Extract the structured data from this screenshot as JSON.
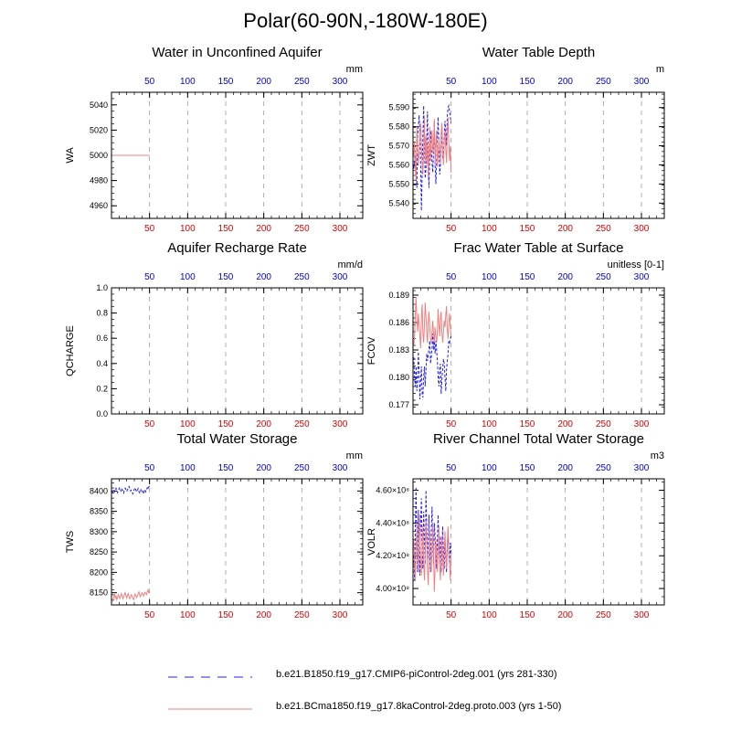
{
  "figure": {
    "title": "Polar(60-90N,-180W-180E)",
    "colors": {
      "case1": "#2020ee",
      "case2": "#f08080",
      "grid": "#9a9a9a",
      "axis": "#000000"
    }
  },
  "legend": [
    {
      "label": "b.e21.B1850.f19_g17.CMIP6-piControl-2deg.001 (yrs 281-330)",
      "color": "#2020ee",
      "style": "dashed"
    },
    {
      "label": "b.e21.BCma1850.f19_g17.8kaControl-2deg.proto.003 (yrs 1-50)",
      "color": "#f08080",
      "style": "solid"
    }
  ],
  "chart_data": [
    {
      "type": "line",
      "title": "Water in Unconfined Aquifer",
      "ylabel": "WA",
      "units": "mm",
      "xlim": [
        0,
        330
      ],
      "ylim": [
        4950,
        5050
      ],
      "xticks": [
        50,
        100,
        150,
        200,
        250,
        300
      ],
      "yticks": [
        4960,
        4980,
        5000,
        5020,
        5040
      ],
      "ytick_labels": [
        "4960",
        "4980",
        "5000",
        "5020",
        "5040"
      ],
      "series": [
        {
          "name": "b.e21.B1850.f19_g17.CMIP6-piControl-2deg.001 (yrs 281-330)",
          "style": "dashed",
          "x_start": 1,
          "values": [
            5000,
            5000,
            5000,
            5000,
            5000,
            5000,
            5000,
            5000,
            5000,
            5000,
            5000,
            5000,
            5000,
            5000,
            5000,
            5000,
            5000,
            5000,
            5000,
            5000,
            5000,
            5000,
            5000,
            5000,
            5000,
            5000,
            5000,
            5000,
            5000,
            5000,
            5000,
            5000,
            5000,
            5000,
            5000,
            5000,
            5000,
            5000,
            5000,
            5000,
            5000,
            5000,
            5000,
            5000,
            5000,
            5000,
            5000,
            5000,
            5000,
            5000
          ]
        },
        {
          "name": "b.e21.BCma1850.f19_g17.8kaControl-2deg.proto.003 (yrs 1-50)",
          "style": "solid",
          "x_start": 1,
          "values": [
            5000,
            5000,
            5000,
            5000,
            5000,
            5000,
            5000,
            5000,
            5000,
            5000,
            5000,
            5000,
            5000,
            5000,
            5000,
            5000,
            5000,
            5000,
            5000,
            5000,
            5000,
            5000,
            5000,
            5000,
            5000,
            5000,
            5000,
            5000,
            5000,
            5000,
            5000,
            5000,
            5000,
            5000,
            5000,
            5000,
            5000,
            5000,
            5000,
            5000,
            5000,
            5000,
            5000,
            5000,
            5000,
            5000,
            5000,
            5000,
            5000,
            5000
          ]
        }
      ]
    },
    {
      "type": "line",
      "title": "Water Table Depth",
      "ylabel": "ZWT",
      "units": "m",
      "xlim": [
        0,
        330
      ],
      "ylim": [
        5.532,
        5.598
      ],
      "xticks": [
        50,
        100,
        150,
        200,
        250,
        300
      ],
      "yticks": [
        5.54,
        5.55,
        5.56,
        5.57,
        5.58,
        5.59
      ],
      "ytick_labels": [
        "5.540",
        "5.550",
        "5.560",
        "5.570",
        "5.580",
        "5.590"
      ],
      "series": [
        {
          "name": "b.e21.B1850.f19_g17.CMIP6-piControl-2deg.001 (yrs 281-330)",
          "style": "dashed",
          "x_start": 1,
          "values": [
            5.558,
            5.562,
            5.565,
            5.553,
            5.548,
            5.575,
            5.58,
            5.586,
            5.578,
            5.562,
            5.536,
            5.555,
            5.575,
            5.591,
            5.57,
            5.553,
            5.558,
            5.572,
            5.588,
            5.56,
            5.548,
            5.566,
            5.578,
            5.571,
            5.561,
            5.556,
            5.569,
            5.583,
            5.56,
            5.55,
            5.562,
            5.574,
            5.585,
            5.57,
            5.555,
            5.56,
            5.572,
            5.58,
            5.563,
            5.566,
            5.575,
            5.583,
            5.577,
            5.57,
            5.586,
            5.59,
            5.591,
            5.588,
            5.585,
            5.582
          ]
        },
        {
          "name": "b.e21.BCma1850.f19_g17.8kaControl-2deg.proto.003 (yrs 1-50)",
          "style": "solid",
          "x_start": 1,
          "values": [
            5.565,
            5.572,
            5.558,
            5.552,
            5.58,
            5.57,
            5.56,
            5.566,
            5.575,
            5.582,
            5.571,
            5.56,
            5.555,
            5.568,
            5.585,
            5.562,
            5.575,
            5.56,
            5.572,
            5.553,
            5.565,
            5.58,
            5.562,
            5.57,
            5.578,
            5.566,
            5.571,
            5.584,
            5.56,
            5.571,
            5.578,
            5.559,
            5.566,
            5.573,
            5.568,
            5.561,
            5.577,
            5.582,
            5.566,
            5.56,
            5.572,
            5.578,
            5.568,
            5.561,
            5.575,
            5.585,
            5.572,
            5.562,
            5.57,
            5.556
          ]
        }
      ]
    },
    {
      "type": "line",
      "title": "Aquifer Recharge Rate",
      "ylabel": "QCHARGE",
      "units": "mm/d",
      "xlim": [
        0,
        330
      ],
      "ylim": [
        0,
        1
      ],
      "xticks": [
        50,
        100,
        150,
        200,
        250,
        300
      ],
      "yticks": [
        0,
        0.2,
        0.4,
        0.6,
        0.8,
        1.0
      ],
      "ytick_labels": [
        "0.0",
        "0.2",
        "0.4",
        "0.6",
        "0.8",
        "1.0"
      ],
      "series": [
        {
          "name": "b.e21.B1850.f19_g17.CMIP6-piControl-2deg.001 (yrs 281-330)",
          "style": "dashed",
          "x_start": 1,
          "values": [
            0,
            0,
            0,
            0,
            0,
            0,
            0,
            0,
            0,
            0,
            0,
            0,
            0,
            0,
            0,
            0,
            0,
            0,
            0,
            0,
            0,
            0,
            0,
            0,
            0,
            0,
            0,
            0,
            0,
            0,
            0,
            0,
            0,
            0,
            0,
            0,
            0,
            0,
            0,
            0,
            0,
            0,
            0,
            0,
            0,
            0,
            0,
            0,
            0,
            0
          ]
        },
        {
          "name": "b.e21.BCma1850.f19_g17.8kaControl-2deg.proto.003 (yrs 1-50)",
          "style": "solid",
          "x_start": 1,
          "values": [
            0,
            0,
            0,
            0,
            0,
            0,
            0,
            0,
            0,
            0,
            0,
            0,
            0,
            0,
            0,
            0,
            0,
            0,
            0,
            0,
            0,
            0,
            0,
            0,
            0,
            0,
            0,
            0,
            0,
            0,
            0,
            0,
            0,
            0,
            0,
            0,
            0,
            0,
            0,
            0,
            0,
            0,
            0,
            0,
            0,
            0,
            0,
            0,
            0,
            0
          ]
        }
      ]
    },
    {
      "type": "line",
      "title": "Frac Water Table at Surface",
      "ylabel": "FCOV",
      "units": "unitless [0-1]",
      "xlim": [
        0,
        330
      ],
      "ylim": [
        0.176,
        0.1898
      ],
      "xticks": [
        50,
        100,
        150,
        200,
        250,
        300
      ],
      "yticks": [
        0.177,
        0.18,
        0.183,
        0.186,
        0.189
      ],
      "ytick_labels": [
        "0.177",
        "0.180",
        "0.183",
        "0.186",
        "0.189"
      ],
      "series": [
        {
          "name": "b.e21.B1850.f19_g17.CMIP6-piControl-2deg.001 (yrs 281-330)",
          "style": "dashed",
          "x_start": 1,
          "values": [
            0.1822,
            0.18,
            0.179,
            0.1812,
            0.1785,
            0.18,
            0.1828,
            0.1805,
            0.1776,
            0.1795,
            0.1812,
            0.1782,
            0.1778,
            0.18,
            0.1812,
            0.179,
            0.1808,
            0.1826,
            0.1818,
            0.1825,
            0.1832,
            0.184,
            0.1815,
            0.1822,
            0.1832,
            0.1848,
            0.183,
            0.1842,
            0.1826,
            0.184,
            0.183,
            0.1818,
            0.18,
            0.179,
            0.1808,
            0.1815,
            0.1782,
            0.1798,
            0.181,
            0.182,
            0.1815,
            0.18,
            0.1785,
            0.1808,
            0.1818,
            0.1826,
            0.184,
            0.1838,
            0.1842,
            0.1845
          ]
        },
        {
          "name": "b.e21.BCma1850.f19_g17.8kaControl-2deg.proto.003 (yrs 1-50)",
          "style": "solid",
          "x_start": 1,
          "values": [
            0.1835,
            0.1845,
            0.187,
            0.1888,
            0.1862,
            0.185,
            0.187,
            0.1858,
            0.1845,
            0.1832,
            0.1865,
            0.188,
            0.1848,
            0.1838,
            0.1858,
            0.1882,
            0.1866,
            0.185,
            0.1838,
            0.186,
            0.1872,
            0.1855,
            0.1842,
            0.1838,
            0.185,
            0.1862,
            0.1848,
            0.1838,
            0.1855,
            0.1845,
            0.1838,
            0.185,
            0.1875,
            0.1858,
            0.1845,
            0.1865,
            0.1872,
            0.1848,
            0.1838,
            0.185,
            0.1862,
            0.1855,
            0.1868,
            0.1878,
            0.1852,
            0.1842,
            0.186,
            0.187,
            0.1855,
            0.1845
          ]
        }
      ]
    },
    {
      "type": "line",
      "title": "Total Water Storage",
      "ylabel": "TWS",
      "units": "mm",
      "xlim": [
        0,
        330
      ],
      "ylim": [
        8120,
        8430
      ],
      "xticks": [
        50,
        100,
        150,
        200,
        250,
        300
      ],
      "yticks": [
        8150,
        8200,
        8250,
        8300,
        8350,
        8400
      ],
      "ytick_labels": [
        "8150",
        "8200",
        "8250",
        "8300",
        "8350",
        "8400"
      ],
      "series": [
        {
          "name": "b.e21.B1850.f19_g17.CMIP6-piControl-2deg.001 (yrs 281-330)",
          "style": "dashed",
          "x_start": 1,
          "values": [
            8395,
            8400,
            8404,
            8398,
            8402,
            8407,
            8403,
            8396,
            8401,
            8406,
            8409,
            8402,
            8398,
            8404,
            8400,
            8395,
            8402,
            8407,
            8404,
            8399,
            8403,
            8408,
            8411,
            8405,
            8400,
            8402,
            8397,
            8393,
            8399,
            8404,
            8408,
            8403,
            8398,
            8402,
            8406,
            8399,
            8394,
            8399,
            8405,
            8401,
            8397,
            8393,
            8400,
            8404,
            8398,
            8402,
            8408,
            8404,
            8410,
            8412
          ]
        },
        {
          "name": "b.e21.BCma1850.f19_g17.8kaControl-2deg.proto.003 (yrs 1-50)",
          "style": "solid",
          "x_start": 1,
          "values": [
            8135,
            8130,
            8140,
            8146,
            8137,
            8142,
            8133,
            8138,
            8145,
            8140,
            8136,
            8143,
            8148,
            8141,
            8135,
            8140,
            8146,
            8150,
            8142,
            8137,
            8144,
            8148,
            8140,
            8135,
            8139,
            8145,
            8142,
            8137,
            8133,
            8140,
            8147,
            8143,
            8138,
            8142,
            8148,
            8152,
            8144,
            8140,
            8145,
            8150,
            8147,
            8142,
            8146,
            8151,
            8148,
            8145,
            8152,
            8157,
            8150,
            8153
          ]
        }
      ]
    },
    {
      "type": "line",
      "title": "River Channel Total Water Storage",
      "ylabel": "VOLR",
      "units": "m3",
      "xlim": [
        0,
        330
      ],
      "ylim": [
        390000000,
        467000000
      ],
      "xticks": [
        50,
        100,
        150,
        200,
        250,
        300
      ],
      "yticks": [
        400000000,
        420000000,
        440000000,
        460000000
      ],
      "ytick_labels": [
        "4.00×10⁸",
        "4.20×10⁸",
        "4.40×10⁸",
        "4.60×10⁸"
      ],
      "series": [
        {
          "name": "b.e21.B1850.f19_g17.CMIP6-piControl-2deg.001 (yrs 281-330)",
          "style": "dashed",
          "x_start": 1,
          "values": [
            420000000,
            405000000,
            435000000,
            462000000,
            430000000,
            410000000,
            448000000,
            425000000,
            408000000,
            440000000,
            455000000,
            420000000,
            412000000,
            447000000,
            430000000,
            415000000,
            460000000,
            438000000,
            418000000,
            428000000,
            445000000,
            422000000,
            410000000,
            435000000,
            450000000,
            428000000,
            415000000,
            440000000,
            432000000,
            420000000,
            412000000,
            430000000,
            445000000,
            425000000,
            415000000,
            432000000,
            410000000,
            425000000,
            438000000,
            420000000,
            412000000,
            430000000,
            418000000,
            410000000,
            425000000,
            435000000,
            420000000,
            415000000,
            428000000,
            422000000
          ]
        },
        {
          "name": "b.e21.BCma1850.f19_g17.8kaControl-2deg.proto.003 (yrs 1-50)",
          "style": "solid",
          "x_start": 1,
          "values": [
            430000000,
            415000000,
            405000000,
            425000000,
            440000000,
            420000000,
            410000000,
            432000000,
            445000000,
            418000000,
            408000000,
            425000000,
            438000000,
            415000000,
            405000000,
            420000000,
            442000000,
            428000000,
            412000000,
            402000000,
            420000000,
            435000000,
            418000000,
            410000000,
            425000000,
            440000000,
            420000000,
            398000000,
            412000000,
            430000000,
            422000000,
            410000000,
            425000000,
            438000000,
            415000000,
            405000000,
            420000000,
            432000000,
            418000000,
            408000000,
            425000000,
            435000000,
            420000000,
            412000000,
            428000000,
            438000000,
            425000000,
            415000000,
            405000000,
            422000000
          ]
        }
      ]
    }
  ]
}
